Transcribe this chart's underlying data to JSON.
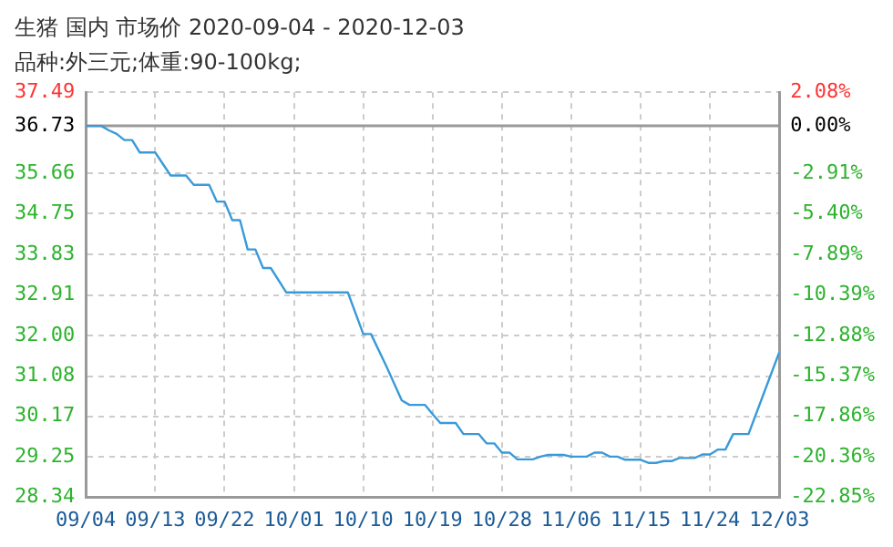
{
  "chart_data": {
    "type": "line",
    "title": "生猪 国内 市场价 2020-09-04 - 2020-12-03",
    "subtitle": "品种:外三元;体重:90-100kg;",
    "x": [
      "2020-09-04",
      "2020-09-06",
      "2020-09-07",
      "2020-09-08",
      "2020-09-09",
      "2020-09-10",
      "2020-09-11",
      "2020-09-13",
      "2020-09-15",
      "2020-09-17",
      "2020-09-18",
      "2020-09-20",
      "2020-09-21",
      "2020-09-22",
      "2020-09-23",
      "2020-09-24",
      "2020-09-25",
      "2020-09-26",
      "2020-09-27",
      "2020-09-28",
      "2020-09-30",
      "2020-10-08",
      "2020-10-10",
      "2020-10-11",
      "2020-10-13",
      "2020-10-15",
      "2020-10-16",
      "2020-10-18",
      "2020-10-19",
      "2020-10-20",
      "2020-10-22",
      "2020-10-23",
      "2020-10-25",
      "2020-10-26",
      "2020-10-27",
      "2020-10-28",
      "2020-10-29",
      "2020-10-30",
      "2020-11-01",
      "2020-11-02",
      "2020-11-03",
      "2020-11-05",
      "2020-11-06",
      "2020-11-08",
      "2020-11-09",
      "2020-11-10",
      "2020-11-11",
      "2020-11-12",
      "2020-11-13",
      "2020-11-15",
      "2020-11-16",
      "2020-11-17",
      "2020-11-18",
      "2020-11-19",
      "2020-11-20",
      "2020-11-22",
      "2020-11-23",
      "2020-11-24",
      "2020-11-25",
      "2020-11-26",
      "2020-11-27",
      "2020-11-29",
      "2020-12-01",
      "2020-12-03"
    ],
    "series": [
      {
        "color": "#3a9ad9",
        "values": [
          36.73,
          36.73,
          36.63,
          36.55,
          36.41,
          36.41,
          36.13,
          36.13,
          35.61,
          35.61,
          35.4,
          35.4,
          35.02,
          35.02,
          34.6,
          34.6,
          33.94,
          33.94,
          33.52,
          33.52,
          32.97,
          32.97,
          32.03,
          32.03,
          31.3,
          30.53,
          30.43,
          30.43,
          30.22,
          30.02,
          30.02,
          29.77,
          29.77,
          29.56,
          29.56,
          29.35,
          29.35,
          29.2,
          29.2,
          29.26,
          29.3,
          29.3,
          29.26,
          29.26,
          29.35,
          29.35,
          29.26,
          29.26,
          29.19,
          29.19,
          29.12,
          29.12,
          29.16,
          29.16,
          29.23,
          29.23,
          29.31,
          29.31,
          29.42,
          29.42,
          29.77,
          29.77,
          30.7,
          31.62
        ]
      }
    ],
    "xlim": [
      "2020-09-04",
      "2020-12-03"
    ],
    "xticks": [
      {
        "value": "2020-09-04",
        "label": "09/04"
      },
      {
        "value": "2020-09-13",
        "label": "09/13"
      },
      {
        "value": "2020-09-22",
        "label": "09/22"
      },
      {
        "value": "2020-10-01",
        "label": "10/01"
      },
      {
        "value": "2020-10-10",
        "label": "10/10"
      },
      {
        "value": "2020-10-19",
        "label": "10/19"
      },
      {
        "value": "2020-10-28",
        "label": "10/28"
      },
      {
        "value": "2020-11-06",
        "label": "11/06"
      },
      {
        "value": "2020-11-15",
        "label": "11/15"
      },
      {
        "value": "2020-11-24",
        "label": "11/24"
      },
      {
        "value": "2020-12-03",
        "label": "12/03"
      }
    ],
    "ylim": [
      28.34,
      37.49
    ],
    "yticks": [
      {
        "value": 28.34,
        "label": "28.34"
      },
      {
        "value": 29.25,
        "label": "29.25"
      },
      {
        "value": 30.17,
        "label": "30.17"
      },
      {
        "value": 31.08,
        "label": "31.08"
      },
      {
        "value": 32,
        "label": "32.00"
      },
      {
        "value": 32.91,
        "label": "32.91"
      },
      {
        "value": 33.83,
        "label": "33.83"
      },
      {
        "value": 34.75,
        "label": "34.75"
      },
      {
        "value": 35.66,
        "label": "35.66"
      },
      {
        "value": 36.73,
        "label": "36.73"
      },
      {
        "value": 37.49,
        "label": "37.49"
      }
    ],
    "y2lim": [
      -22.85,
      2.08
    ],
    "y2ticks": [
      {
        "value": -22.85,
        "label": "-22.85%"
      },
      {
        "value": -20.36,
        "label": "-20.36%"
      },
      {
        "value": -17.86,
        "label": "-17.86%"
      },
      {
        "value": -15.37,
        "label": "-15.37%"
      },
      {
        "value": -12.88,
        "label": "-12.88%"
      },
      {
        "value": -10.39,
        "label": "-10.39%"
      },
      {
        "value": -7.89,
        "label": "-7.89%"
      },
      {
        "value": -5.4,
        "label": "-5.40%"
      },
      {
        "value": -2.91,
        "label": "-2.91%"
      },
      {
        "value": 0,
        "label": "0.00%"
      },
      {
        "value": 2.08,
        "label": "2.08%"
      }
    ],
    "ref_lines": [
      {
        "axis": "y",
        "value": 36.73,
        "color": "#999999",
        "line_style": "solid"
      }
    ],
    "grid": true,
    "legend": false,
    "marker": "none",
    "line_style": "solid"
  }
}
